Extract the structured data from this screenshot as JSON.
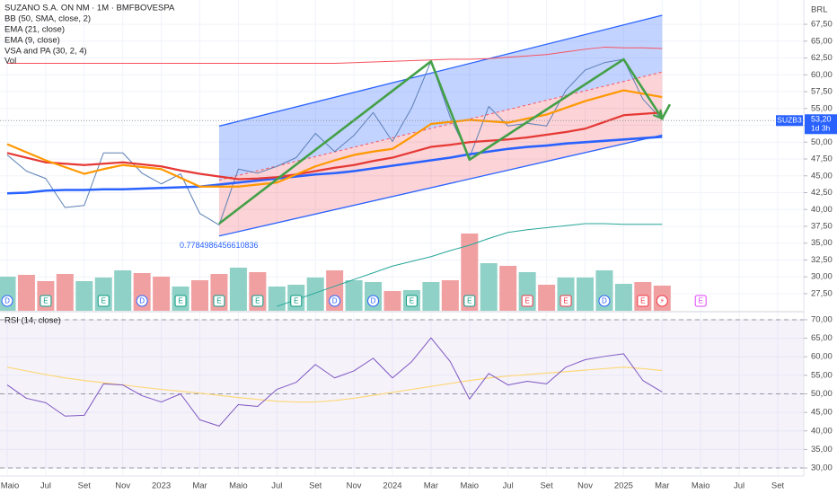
{
  "chart_data": [
    {
      "type": "line",
      "title": "SUZANO S.A. ON NM · 1M · BMFBOVESPA",
      "currency": "BRL",
      "ylim": [
        24.96,
        71.11
      ],
      "yticks": [
        {
          "value": 27.5,
          "label": "27,50"
        },
        {
          "value": 30,
          "label": "30,00"
        },
        {
          "value": 32.5,
          "label": "32,50"
        },
        {
          "value": 35,
          "label": "35,00"
        },
        {
          "value": 37.5,
          "label": "37,50"
        },
        {
          "value": 40,
          "label": "40,00"
        },
        {
          "value": 42.5,
          "label": "42,50"
        },
        {
          "value": 45,
          "label": "45,00"
        },
        {
          "value": 47.5,
          "label": "47,50"
        },
        {
          "value": 50,
          "label": "50,00"
        },
        {
          "value": 52.5,
          "label": "52,50"
        },
        {
          "value": 55,
          "label": "55,00"
        },
        {
          "value": 57.5,
          "label": "57,50"
        },
        {
          "value": 60,
          "label": "60,00"
        },
        {
          "value": 62.5,
          "label": "62,50"
        },
        {
          "value": 65,
          "label": "65,00"
        },
        {
          "value": 67.5,
          "label": "67,50"
        }
      ],
      "grid": true,
      "close": {
        "color": "#5b7fb5",
        "values": [
          48.1,
          45.7,
          44.6,
          40.3,
          40.6,
          48.4,
          48.4,
          45.4,
          43.8,
          45.3,
          39.4,
          37.7,
          46.0,
          45.4,
          46.4,
          47.7,
          51.3,
          48.6,
          51.0,
          54.4,
          50.1,
          55.1,
          62.0,
          53.7,
          47.7,
          55.3,
          52.4,
          52.8,
          52.4,
          57.7,
          60.7,
          61.8,
          62.3,
          56.4,
          53.3,
          null,
          null,
          null,
          null,
          null,
          null
        ]
      },
      "series": [
        {
          "name": "BB (50, SMA, close, 2)",
          "lines": [
            {
              "color": "#2962ff",
              "values": [
                42.4,
                42.5,
                42.8,
                42.9,
                42.9,
                43.0,
                43.0,
                43.1,
                43.2,
                43.3,
                43.4,
                43.7,
                44.0,
                44.3,
                44.6,
                44.9,
                45.2,
                45.4,
                45.7,
                46.1,
                46.5,
                46.9,
                47.3,
                47.7,
                48.2,
                48.6,
                49.0,
                49.3,
                49.5,
                49.8,
                50.0,
                50.2,
                50.4,
                50.6,
                50.8,
                null,
                null,
                null,
                null,
                null,
                null
              ]
            },
            {
              "color": "#f7525f",
              "values": [
                61.7,
                61.7,
                61.7,
                61.7,
                61.7,
                61.7,
                61.7,
                61.7,
                61.7,
                61.7,
                61.7,
                61.7,
                61.7,
                61.7,
                61.7,
                61.7,
                61.7,
                61.7,
                61.8,
                61.9,
                62.0,
                62.1,
                62.2,
                62.3,
                62.3,
                62.4,
                62.6,
                62.8,
                63.0,
                63.4,
                63.8,
                64.1,
                64.0,
                64.0,
                63.9,
                null,
                null,
                null,
                null,
                null,
                null
              ]
            },
            {
              "color": "#26a69a",
              "values": [
                null,
                null,
                null,
                null,
                null,
                null,
                null,
                null,
                null,
                null,
                null,
                null,
                null,
                null,
                25.6,
                26.6,
                27.6,
                28.6,
                29.6,
                30.6,
                31.6,
                32.3,
                33.0,
                33.9,
                34.7,
                35.7,
                36.6,
                37.0,
                37.3,
                37.6,
                37.9,
                37.9,
                37.8,
                37.8,
                37.8,
                null,
                null,
                null,
                null,
                null,
                null
              ]
            }
          ]
        },
        {
          "name": "EMA (21, close)",
          "color": "#e53935",
          "values": [
            48.4,
            47.7,
            47.0,
            46.8,
            46.6,
            46.8,
            47.0,
            46.7,
            46.4,
            45.8,
            45.3,
            44.9,
            44.5,
            44.6,
            44.8,
            45.2,
            45.7,
            46.2,
            46.6,
            47.2,
            47.7,
            48.5,
            49.3,
            49.6,
            50.0,
            50.2,
            50.4,
            50.7,
            51.1,
            51.5,
            52.0,
            53.0,
            54.0,
            54.2,
            54.4,
            null,
            null,
            null,
            null,
            null,
            null
          ]
        },
        {
          "name": "EMA (9, close)",
          "color": "#ff9800",
          "values": [
            49.7,
            48.5,
            47.3,
            46.3,
            45.3,
            46.0,
            46.6,
            46.3,
            46.0,
            44.7,
            43.4,
            43.4,
            43.4,
            43.7,
            44.0,
            45.2,
            46.4,
            47.3,
            48.1,
            48.6,
            49.0,
            50.8,
            52.7,
            53.0,
            53.3,
            53.1,
            52.9,
            53.5,
            54.1,
            55.1,
            56.1,
            56.9,
            57.7,
            57.2,
            56.7,
            null,
            null,
            null,
            null,
            null,
            null
          ]
        },
        {
          "name": "VSA and PA (30, 2, 4)"
        },
        {
          "name": "Vol",
          "values": [
            38,
            40,
            33,
            41,
            33,
            37,
            45,
            42,
            38,
            27,
            34,
            41,
            48,
            43,
            27,
            29,
            37,
            45,
            34,
            32,
            22,
            23,
            32,
            34,
            86,
            53,
            50,
            43,
            29,
            37,
            37,
            45,
            30,
            32,
            28,
            null,
            null,
            null,
            null,
            null,
            null
          ],
          "colors": [
            "#8fd1c6",
            "#f1a0a2",
            "#f1a0a2",
            "#f1a0a2",
            "#8fd1c6",
            "#8fd1c6",
            "#8fd1c6",
            "#f1a0a2",
            "#f1a0a2",
            "#8fd1c6",
            "#f1a0a2",
            "#f1a0a2",
            "#8fd1c6",
            "#f1a0a2",
            "#8fd1c6",
            "#8fd1c6",
            "#8fd1c6",
            "#f1a0a2",
            "#8fd1c6",
            "#8fd1c6",
            "#f1a0a2",
            "#8fd1c6",
            "#8fd1c6",
            "#f1a0a2",
            "#f1a0a2",
            "#8fd1c6",
            "#f1a0a2",
            "#8fd1c6",
            "#f1a0a2",
            "#8fd1c6",
            "#8fd1c6",
            "#8fd1c6",
            "#8fd1c6",
            "#f1a0a2",
            "#f1a0a2",
            null,
            null,
            null,
            null,
            null,
            null
          ]
        }
      ],
      "channel": {
        "start": 11,
        "end": 34,
        "upper": [
          52.38,
          68.84
        ],
        "middle": [
          44.36,
          60.41
        ],
        "lower": [
          36.06,
          51.05
        ],
        "line_color": "#2962ff",
        "mid_color": "#f7525f",
        "label": 0.7784986456610836
      },
      "drawing": {
        "color": "#43a047",
        "points": [
          [
            11,
            37.9
          ],
          [
            22,
            62.0
          ],
          [
            24,
            47.4
          ],
          [
            32,
            62.3
          ],
          [
            34,
            53.5
          ],
          [
            34.4,
            55.6
          ]
        ]
      },
      "last": {
        "ticker": "SUZB3",
        "value": 53.2,
        "label": "53,20",
        "countdown": "1d 3h",
        "color": "#2962ff"
      },
      "events": [
        {
          "index": 0,
          "label": "D",
          "color": "#2962ff",
          "shape": "circle"
        },
        {
          "index": 2,
          "label": "E",
          "color": "#089981",
          "shape": "square"
        },
        {
          "index": 5,
          "label": "E",
          "color": "#089981",
          "shape": "square"
        },
        {
          "index": 7,
          "label": "D",
          "color": "#2962ff",
          "shape": "circle"
        },
        {
          "index": 9,
          "label": "E",
          "color": "#089981",
          "shape": "square"
        },
        {
          "index": 11,
          "label": "E",
          "color": "#089981",
          "shape": "square"
        },
        {
          "index": 13,
          "label": "E",
          "color": "#089981",
          "shape": "square"
        },
        {
          "index": 15,
          "label": "E",
          "color": "#089981",
          "shape": "square"
        },
        {
          "index": 17,
          "label": "D",
          "color": "#2962ff",
          "shape": "circle"
        },
        {
          "index": 19,
          "label": "D",
          "color": "#2962ff",
          "shape": "circle"
        },
        {
          "index": 21,
          "label": "E",
          "color": "#089981",
          "shape": "square"
        },
        {
          "index": 24,
          "label": "E",
          "color": "#089981",
          "shape": "square"
        },
        {
          "index": 27,
          "label": "E",
          "color": "#f23645",
          "shape": "square"
        },
        {
          "index": 29,
          "label": "E",
          "color": "#f23645",
          "shape": "square"
        },
        {
          "index": 31,
          "label": "D",
          "color": "#2962ff",
          "shape": "circle"
        },
        {
          "index": 33,
          "label": "E",
          "color": "#f23645",
          "shape": "square"
        },
        {
          "index": 34,
          "label": "⚡",
          "color": "#f23645",
          "shape": "circle"
        },
        {
          "index": 36,
          "label": "E",
          "color": "#e040fb",
          "shape": "square"
        }
      ]
    },
    {
      "type": "line",
      "title": "RSI (14, close)",
      "categories": [
        "Maio",
        null,
        "Jul",
        null,
        "Set",
        null,
        "Nov",
        null,
        "2023",
        null,
        "Mar",
        null,
        "Maio",
        null,
        "Jul",
        null,
        "Set",
        null,
        "Nov",
        null,
        "2024",
        null,
        "Mar",
        null,
        "Maio",
        null,
        "Jul",
        null,
        "Set",
        null,
        "Nov",
        null,
        "2025",
        null,
        "Mar",
        null,
        "Maio",
        null,
        "Jul",
        null,
        "Set"
      ],
      "ylim": [
        27.83,
        72.41
      ],
      "yticks": [
        {
          "value": 30,
          "label": "30,00"
        },
        {
          "value": 35,
          "label": "35,00"
        },
        {
          "value": 40,
          "label": "40,00"
        },
        {
          "value": 45,
          "label": "45,00"
        },
        {
          "value": 50,
          "label": "50,00"
        },
        {
          "value": 55,
          "label": "55,00"
        },
        {
          "value": 60,
          "label": "60,00"
        },
        {
          "value": 65,
          "label": "65,00"
        },
        {
          "value": 70,
          "label": "70,00"
        }
      ],
      "levels": [
        70,
        50,
        30
      ],
      "band_color": "#7e57c2",
      "series": [
        {
          "color": "#7e57c2",
          "values": [
            52.4,
            48.8,
            47.6,
            44.0,
            44.2,
            52.7,
            52.4,
            49.5,
            47.8,
            50.0,
            43.0,
            41.3,
            47.1,
            46.6,
            51.2,
            53.1,
            57.9,
            54.3,
            56.2,
            59.6,
            54.3,
            58.7,
            65.1,
            58.7,
            48.6,
            55.5,
            52.4,
            53.4,
            52.7,
            57.2,
            59.2,
            60.1,
            60.8,
            53.6,
            50.5,
            null,
            null,
            null,
            null,
            null,
            null
          ]
        },
        {
          "color": "#fdd87a",
          "values": [
            57.2,
            56.2,
            55.2,
            54.3,
            53.6,
            53.0,
            52.4,
            51.8,
            51.2,
            50.7,
            50.2,
            49.6,
            49.0,
            48.5,
            48.0,
            47.8,
            47.8,
            48.2,
            48.8,
            49.6,
            50.4,
            51.2,
            52.0,
            52.8,
            53.6,
            54.3,
            54.8,
            55.2,
            55.6,
            56.0,
            56.4,
            56.8,
            57.2,
            56.8,
            56.3,
            null,
            null,
            null,
            null,
            null,
            null
          ]
        }
      ]
    }
  ]
}
